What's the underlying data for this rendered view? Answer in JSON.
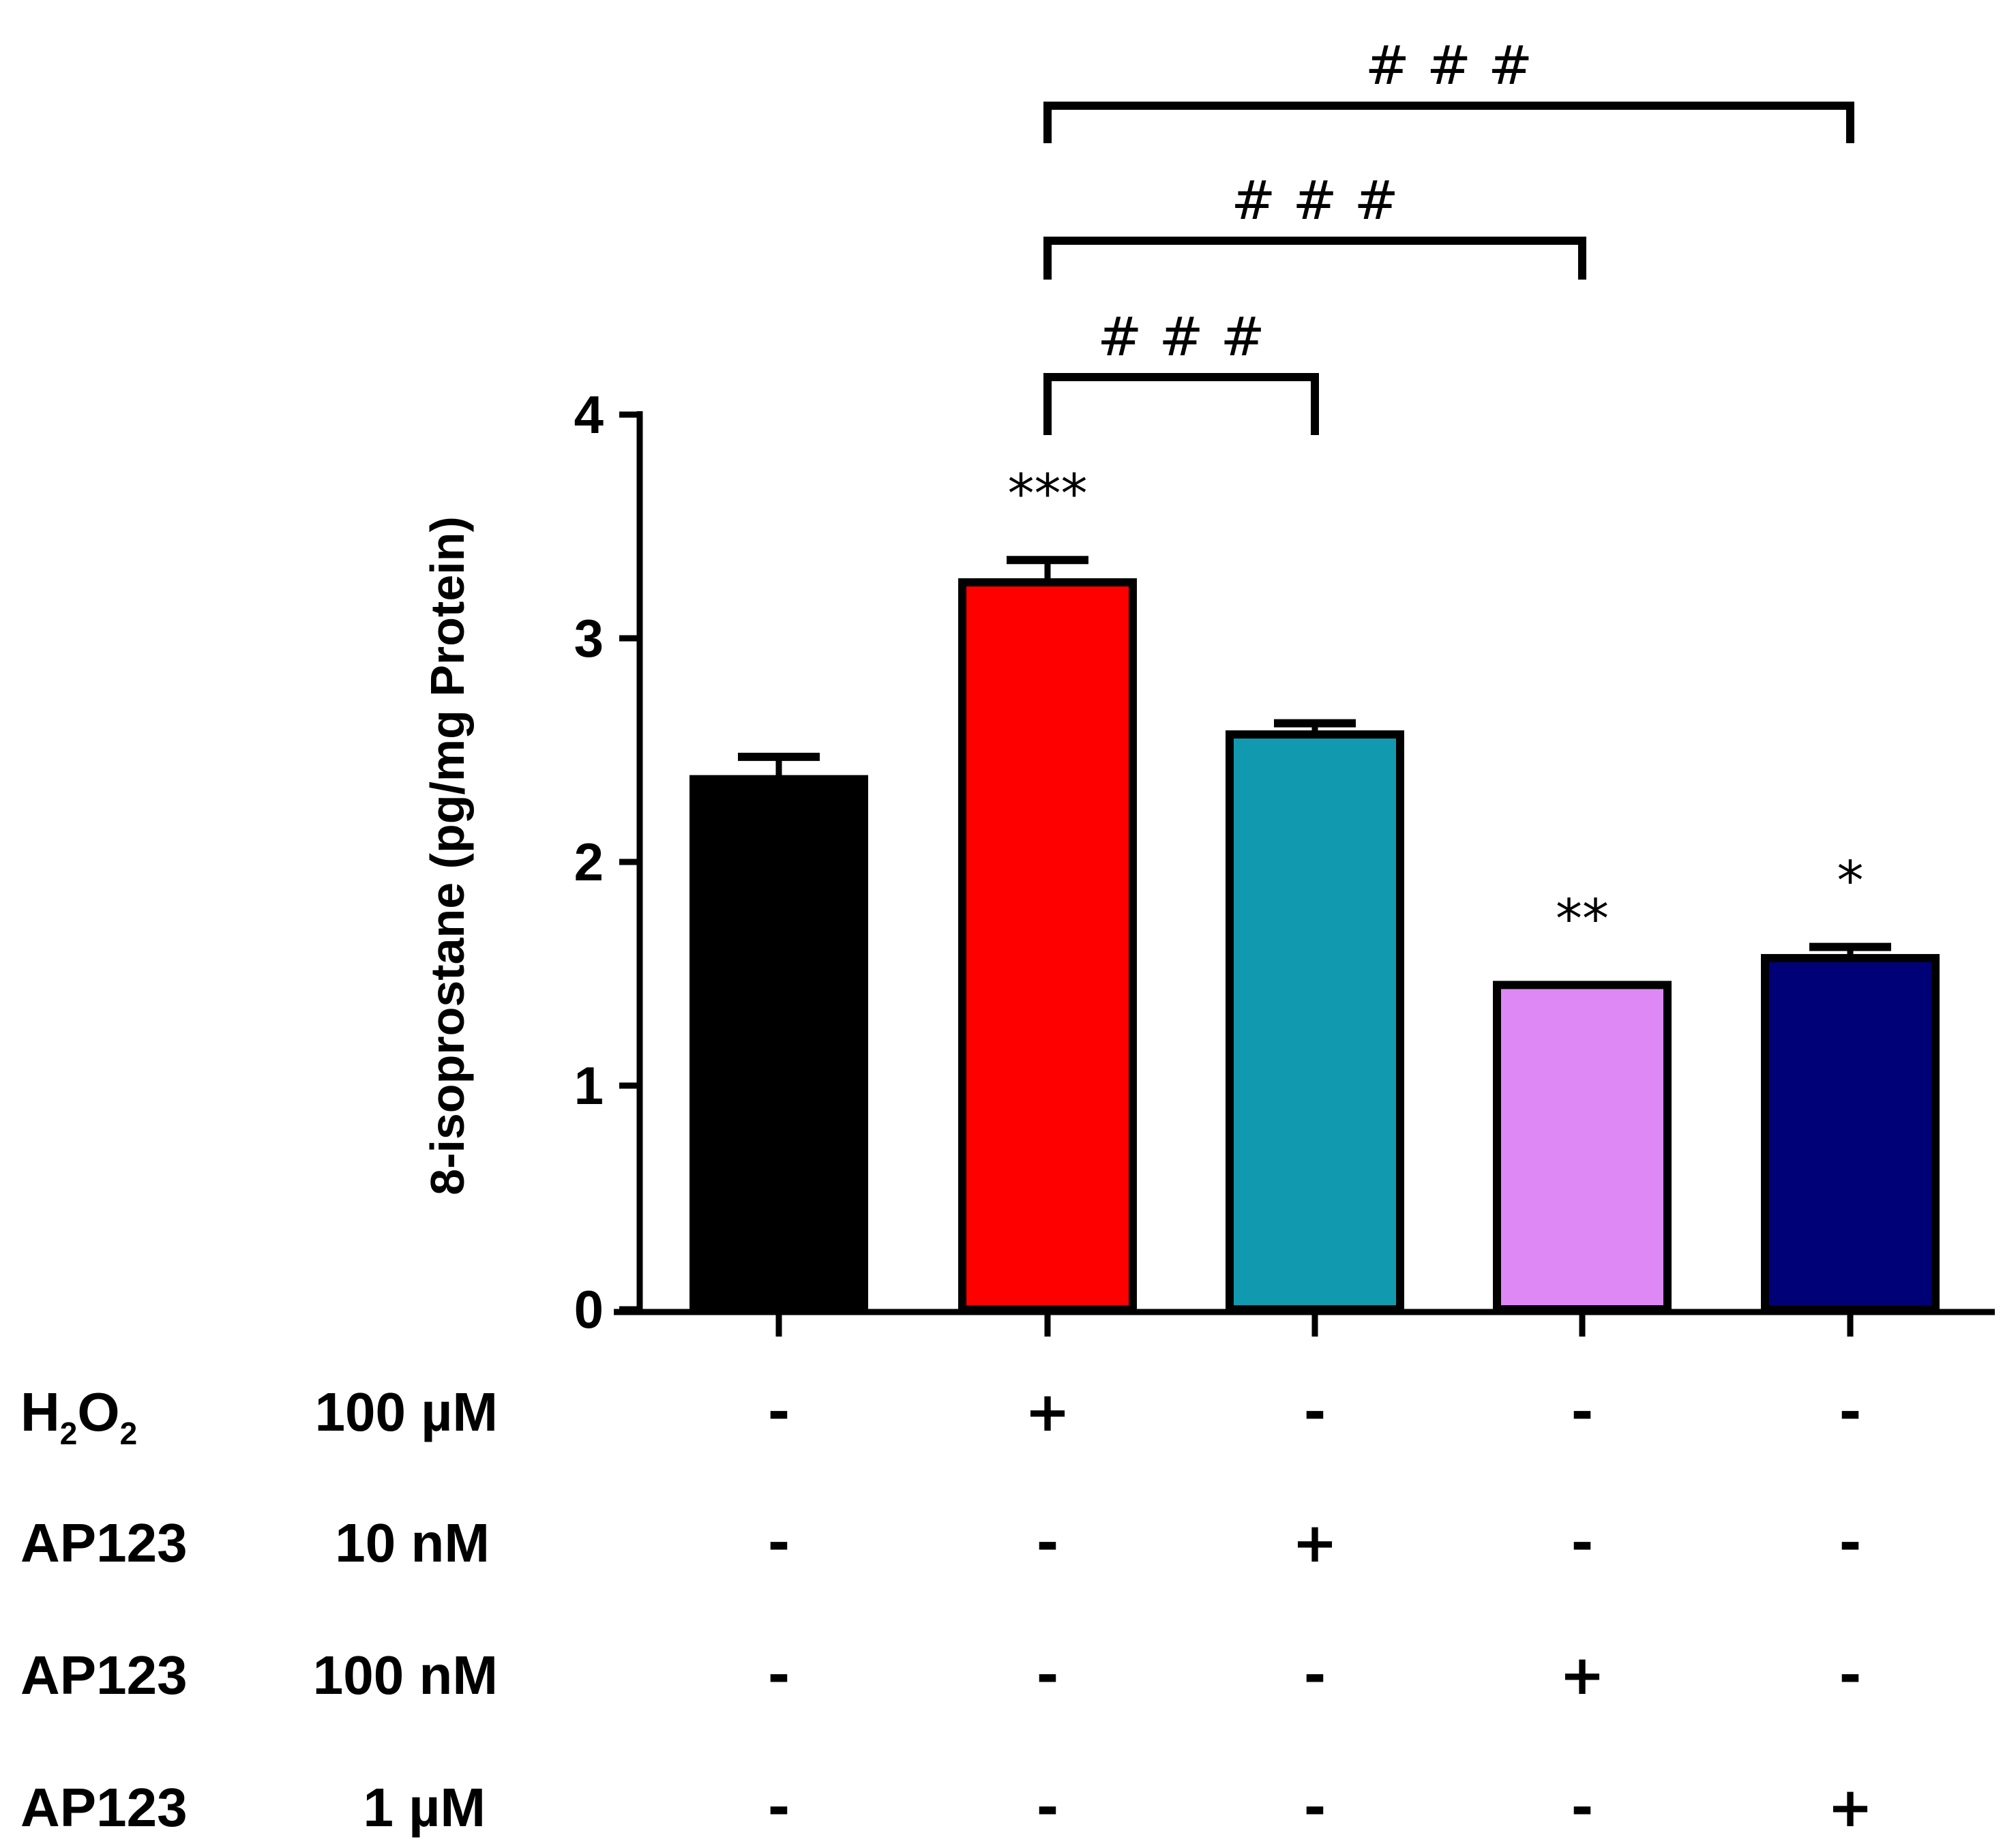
{
  "chart_data": {
    "type": "bar",
    "ylabel": "8-isoprostane (pg/mg Protein)",
    "ylim": [
      0,
      4
    ],
    "yticks": [
      "0",
      "1",
      "2",
      "3",
      "4"
    ],
    "values": [
      2.37,
      3.25,
      2.57,
      1.45,
      1.57
    ],
    "errors": [
      0.1,
      0.1,
      0.05,
      0.0,
      0.05
    ],
    "colors": [
      "#000000",
      "#ff0000",
      "#119aaf",
      "#dd88f5",
      "#000077"
    ],
    "annotations": [
      "",
      "***",
      "",
      "**",
      "*"
    ],
    "comparisons": [
      {
        "from": 1,
        "to": 2,
        "label": "# # #"
      },
      {
        "from": 1,
        "to": 3,
        "label": "# # #"
      },
      {
        "from": 1,
        "to": 4,
        "label": "# # #"
      }
    ],
    "conditions": [
      {
        "name": "H",
        "sub1": "2",
        "mid": "O",
        "sub2": "2",
        "dose": "100 µM",
        "signs": [
          "-",
          "+",
          "-",
          "-",
          "-"
        ]
      },
      {
        "name": "AP123",
        "dose": "10 nM",
        "signs": [
          "-",
          "-",
          "+",
          "-",
          "-"
        ]
      },
      {
        "name": "AP123",
        "dose": "100 nM",
        "signs": [
          "-",
          "-",
          "-",
          "+",
          "-"
        ]
      },
      {
        "name": "AP123",
        "dose": "1 µM",
        "signs": [
          "-",
          "-",
          "-",
          "-",
          "+"
        ]
      }
    ]
  }
}
